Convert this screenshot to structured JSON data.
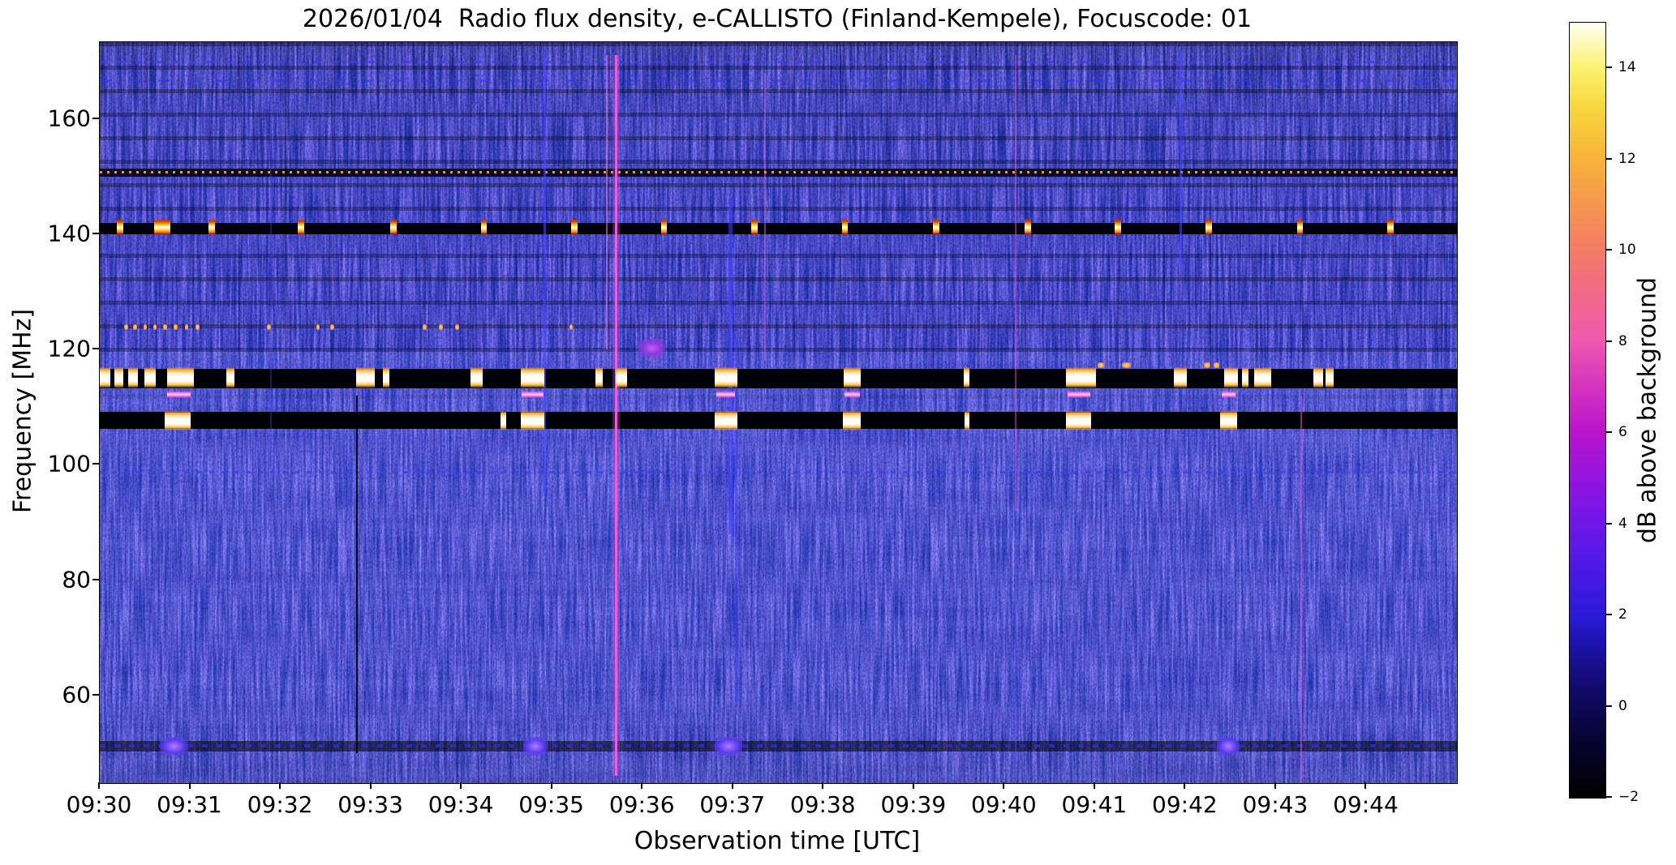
{
  "title": "2026/01/04  Radio flux density, e-CALLISTO (Finland-Kempele), Focuscode: 01",
  "axes": {
    "x_label": "Observation time [UTC]",
    "y_label": "Frequency [MHz]",
    "x_ticks": [
      "09:30",
      "09:31",
      "09:32",
      "09:33",
      "09:34",
      "09:35",
      "09:36",
      "09:37",
      "09:38",
      "09:39",
      "09:40",
      "09:41",
      "09:42",
      "09:43",
      "09:44"
    ],
    "y_ticks": [
      "160",
      "140",
      "120",
      "100",
      "80",
      "60"
    ]
  },
  "colorbar": {
    "label": "dB above background",
    "ticks": [
      {
        "v": 14,
        "label": "14"
      },
      {
        "v": 12,
        "label": "12"
      },
      {
        "v": 10,
        "label": "10"
      },
      {
        "v": 8,
        "label": "8"
      },
      {
        "v": 6,
        "label": "6"
      },
      {
        "v": 4,
        "label": "4"
      },
      {
        "v": 2,
        "label": "2"
      },
      {
        "v": 0,
        "label": "0"
      },
      {
        "v": -2,
        "label": "−2"
      }
    ],
    "range_db": [
      -2,
      15
    ]
  },
  "chart_data": {
    "type": "heatmap",
    "title": "2026/01/04  Radio flux density, e-CALLISTO (Finland-Kempele), Focuscode: 01",
    "xlabel": "Observation time [UTC]",
    "ylabel": "Frequency [MHz]",
    "x_start_utc": "09:30",
    "x_range_minutes": [
      0,
      15
    ],
    "x_tick_minutes": [
      0,
      1,
      2,
      3,
      4,
      5,
      6,
      7,
      8,
      9,
      10,
      11,
      12,
      13,
      14
    ],
    "y_tick_values_mhz": [
      160,
      140,
      120,
      100,
      80,
      60
    ],
    "freq_range_mhz": [
      44.8,
      173.3
    ],
    "intensity_range_db": [
      -2,
      15
    ],
    "background_level_db": 0.5,
    "features": {
      "rfi_bands": [
        {
          "name": "rfi-band-115mhz",
          "freq_mhz": [
            113.3,
            116.7
          ],
          "color": "#010108"
        },
        {
          "name": "rfi-band-108mhz",
          "freq_mhz": [
            106.2,
            109.2
          ],
          "color": "#010108"
        },
        {
          "name": "rfi-band-141mhz",
          "freq_mhz": [
            140.0,
            141.9
          ],
          "color": "#02020c"
        }
      ],
      "dash_rows": [
        {
          "name": "dotted-line-150mhz",
          "freq_mhz": 150.7,
          "color": "#ff8c2e",
          "dash": 3,
          "gap": 6,
          "h": 3,
          "opacity": 1,
          "underlay_h": 10,
          "underlay": "rgba(0,0,6,0.85)"
        },
        {
          "name": "dash-row-170mhz",
          "freq_mhz": 169.9,
          "color": "#3a3aff",
          "dash": 9,
          "gap": 13,
          "h": 3,
          "opacity": 0.75
        },
        {
          "name": "dash-row-166mhz",
          "freq_mhz": 166.6,
          "color": "#3333f2",
          "dash": 14,
          "gap": 22,
          "h": 3,
          "opacity": 0.55
        },
        {
          "name": "dash-row-99mhz",
          "freq_mhz": 98.7,
          "color": "#3b3bff",
          "dash": 6,
          "gap": 9,
          "h": 3,
          "opacity": 0.8
        },
        {
          "name": "dash-row-51mhz",
          "freq_mhz": 51.2,
          "color": "#2f2fe0",
          "dash": 7,
          "gap": 11,
          "h": 4,
          "opacity": 0.7,
          "underlay_h": 13,
          "underlay": "rgba(0,0,10,0.55)"
        }
      ],
      "burst_groups": [
        {
          "name": "bursts-115mhz",
          "css": "burst-white",
          "freq_mhz": [
            113.2,
            116.9
          ],
          "times_min": [
            [
              0.0,
              0.12
            ],
            [
              0.16,
              0.26
            ],
            [
              0.31,
              0.42
            ],
            [
              0.49,
              0.62
            ],
            [
              0.74,
              1.04
            ],
            [
              1.4,
              1.49
            ],
            [
              2.83,
              3.04
            ],
            [
              3.13,
              3.2
            ],
            [
              4.1,
              4.23
            ],
            [
              4.65,
              4.91
            ],
            [
              5.48,
              5.56
            ],
            [
              5.7,
              5.83
            ],
            [
              6.8,
              7.05
            ],
            [
              8.22,
              8.41
            ],
            [
              9.55,
              9.61
            ],
            [
              10.68,
              11.01
            ],
            [
              11.87,
              12.01
            ],
            [
              12.43,
              12.58
            ],
            [
              12.62,
              12.7
            ],
            [
              12.76,
              12.95
            ],
            [
              13.41,
              13.52
            ],
            [
              13.55,
              13.64
            ]
          ]
        },
        {
          "name": "bursts-108mhz",
          "css": "burst-white",
          "freq_mhz": [
            106.0,
            109.3
          ],
          "times_min": [
            [
              0.72,
              1.0
            ],
            [
              4.43,
              4.49
            ],
            [
              4.65,
              4.91
            ],
            [
              6.8,
              7.05
            ],
            [
              8.21,
              8.41
            ],
            [
              9.56,
              9.61
            ],
            [
              10.68,
              10.96
            ],
            [
              12.38,
              12.57
            ]
          ]
        },
        {
          "name": "bursts-112mhz",
          "css": "burst-pink",
          "freq_mhz": [
            111.6,
            112.9
          ],
          "times_min": [
            [
              0.74,
              1.0
            ],
            [
              4.66,
              4.9
            ],
            [
              6.81,
              7.02
            ],
            [
              8.23,
              8.4
            ],
            [
              10.7,
              10.95
            ],
            [
              12.4,
              12.55
            ]
          ]
        },
        {
          "name": "beacon-141mhz",
          "css": "blob140",
          "freq_mhz": [
            139.8,
            142.6
          ],
          "times_min": [
            [
              0.19,
              0.26
            ],
            [
              0.6,
              0.78
            ],
            [
              1.2,
              1.27
            ],
            [
              2.19,
              2.26
            ],
            [
              3.21,
              3.28
            ],
            [
              4.21,
              4.28
            ],
            [
              5.21,
              5.28
            ],
            [
              6.2,
              6.27
            ],
            [
              7.2,
              7.27
            ],
            [
              8.2,
              8.27
            ],
            [
              9.21,
              9.28
            ],
            [
              10.22,
              10.29
            ],
            [
              11.22,
              11.29
            ],
            [
              12.22,
              12.29
            ],
            [
              13.23,
              13.3
            ],
            [
              14.23,
              14.3
            ]
          ]
        },
        {
          "name": "dots-124mhz",
          "css": "dot-orange",
          "freq_mhz": [
            123.4,
            124.4
          ],
          "times_min": [
            [
              0.27,
              0.31
            ],
            [
              0.37,
              0.41
            ],
            [
              0.48,
              0.52
            ],
            [
              0.59,
              0.63
            ],
            [
              0.7,
              0.74
            ],
            [
              0.82,
              0.86
            ],
            [
              0.94,
              0.98
            ],
            [
              1.06,
              1.1
            ],
            [
              1.85,
              1.89
            ],
            [
              2.39,
              2.43
            ],
            [
              2.55,
              2.59
            ],
            [
              3.57,
              3.61
            ],
            [
              3.75,
              3.79
            ],
            [
              3.93,
              3.97
            ],
            [
              5.19,
              5.23
            ]
          ]
        },
        {
          "name": "dots-117mhz",
          "css": "dot-orange",
          "freq_mhz": [
            116.8,
            117.7
          ],
          "times_min": [
            [
              11.03,
              11.1
            ],
            [
              11.3,
              11.4
            ],
            [
              12.2,
              12.27
            ],
            [
              12.31,
              12.37
            ]
          ]
        },
        {
          "name": "blobs-51mhz",
          "css": "blob-violet",
          "freq_mhz": [
            49.6,
            52.8
          ],
          "times_min": [
            [
              0.66,
              0.98
            ],
            [
              4.68,
              4.95
            ],
            [
              6.8,
              7.1
            ],
            [
              12.35,
              12.6
            ]
          ]
        },
        {
          "name": "patch-121mhz",
          "css": "patch-purple",
          "freq_mhz": [
            118.6,
            121.8
          ],
          "times_min": [
            [
              5.95,
              6.25
            ]
          ]
        }
      ],
      "vertical_streaks": [
        {
          "name": "burst-streak-0935-halo",
          "time_min": 5.71,
          "freq_mhz": [
            46,
            171
          ],
          "color": "#9a6cff",
          "width": 9,
          "opacity": 0.3
        },
        {
          "name": "burst-streak-0935",
          "time_min": 5.71,
          "freq_mhz": [
            46,
            171
          ],
          "color": "#ff5ad2",
          "width": 3,
          "opacity": 0.95
        },
        {
          "name": "burst-streak-0935b",
          "time_min": 5.6,
          "freq_mhz": [
            120,
            171
          ],
          "color": "#ff74d8",
          "width": 2,
          "opacity": 0.55
        },
        {
          "name": "streak-0934",
          "time_min": 4.92,
          "freq_mhz": [
            95,
            171
          ],
          "color": "#4646ff",
          "width": 3,
          "opacity": 0.6
        },
        {
          "name": "streak-0936",
          "time_min": 6.97,
          "freq_mhz": [
            88,
            146
          ],
          "color": "#4040ff",
          "width": 5,
          "opacity": 0.55
        },
        {
          "name": "streak-0937",
          "time_min": 7.03,
          "freq_mhz": [
            58,
            122
          ],
          "color": "#3a3af2",
          "width": 3,
          "opacity": 0.45
        },
        {
          "name": "streak-0937b",
          "time_min": 7.35,
          "freq_mhz": [
            118,
            168
          ],
          "color": "#e266d6",
          "width": 2,
          "opacity": 0.5
        },
        {
          "name": "streak-0940",
          "time_min": 10.12,
          "freq_mhz": [
            92,
            171
          ],
          "color": "#d455c4",
          "width": 2,
          "opacity": 0.5
        },
        {
          "name": "streak-0940b",
          "time_min": 10.12,
          "freq_mhz": [
            45,
            92
          ],
          "color": "#4040ea",
          "width": 2,
          "opacity": 0.4
        },
        {
          "name": "streak-0941",
          "time_min": 11.95,
          "freq_mhz": [
            134,
            172
          ],
          "color": "#4848ff",
          "width": 3,
          "opacity": 0.55
        },
        {
          "name": "streak-0943",
          "time_min": 13.28,
          "freq_mhz": [
            45,
            112
          ],
          "color": "#e24fd0",
          "width": 2,
          "opacity": 0.55
        },
        {
          "name": "dropout-line-0932",
          "time_min": 2.84,
          "freq_mhz": [
            50,
            112
          ],
          "color": "#00000c",
          "width": 2,
          "opacity": 0.9
        },
        {
          "name": "streak-0931",
          "time_min": 1.89,
          "freq_mhz": [
            100,
            168
          ],
          "color": "#3a3aee",
          "width": 2,
          "opacity": 0.4
        }
      ]
    }
  }
}
